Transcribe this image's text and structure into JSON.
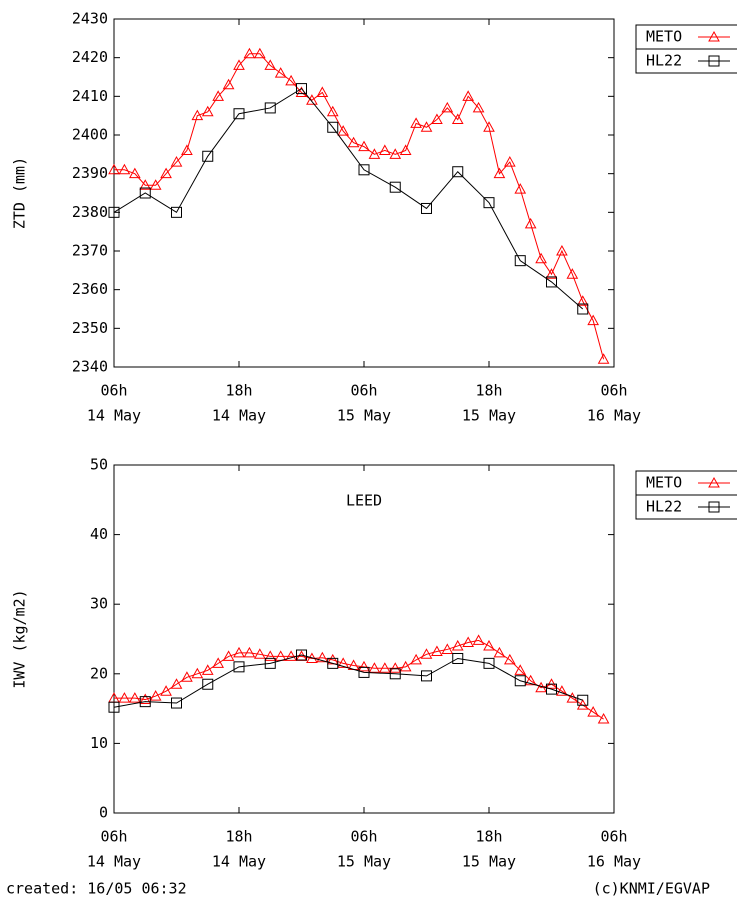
{
  "chart_data": [
    {
      "type": "line",
      "ylabel": "ZTD (mm)",
      "xlim": [
        0,
        48
      ],
      "xticks": [
        {
          "value": 0,
          "label": "06h",
          "date": "14 May"
        },
        {
          "value": 12,
          "label": "18h",
          "date": "14 May"
        },
        {
          "value": 24,
          "label": "06h",
          "date": "15 May"
        },
        {
          "value": 36,
          "label": "18h",
          "date": "15 May"
        },
        {
          "value": 48,
          "label": "06h",
          "date": "16 May"
        }
      ],
      "ylim": [
        2340,
        2430
      ],
      "yticks": [
        2340,
        2350,
        2360,
        2370,
        2380,
        2390,
        2400,
        2410,
        2420,
        2430
      ],
      "grid": false,
      "legend": "outside-right-top",
      "series": [
        {
          "name": "METO",
          "color": "#ff0000",
          "marker": "triangle",
          "x": [
            0,
            1,
            2,
            3,
            4,
            5,
            6,
            7,
            8,
            9,
            10,
            11,
            12,
            13,
            14,
            15,
            16,
            17,
            18,
            19,
            20,
            21,
            22,
            23,
            24,
            25,
            26,
            27,
            28,
            29,
            30,
            31,
            32,
            33,
            34,
            35,
            36,
            37,
            38,
            39,
            40,
            41,
            42,
            43,
            44,
            45,
            46,
            47
          ],
          "values": [
            2391,
            2391,
            2390,
            2387,
            2387,
            2390,
            2393,
            2396,
            2405,
            2406,
            2410,
            2413,
            2418,
            2421,
            2421,
            2418,
            2416,
            2414,
            2411,
            2409,
            2411,
            2406,
            2401,
            2398,
            2397,
            2395,
            2396,
            2395,
            2396,
            2403,
            2402,
            2404,
            2407,
            2404,
            2410,
            2407,
            2402,
            2390,
            2393,
            2386,
            2377,
            2368,
            2364,
            2370,
            2364,
            2357,
            2352,
            2342
          ]
        },
        {
          "name": "HL22",
          "color": "#000000",
          "marker": "square",
          "x": [
            0,
            3,
            6,
            9,
            12,
            15,
            18,
            21,
            24,
            27,
            30,
            33,
            36,
            39,
            42,
            45
          ],
          "values": [
            2380,
            2385,
            2380,
            2394.5,
            2405.5,
            2407,
            2412,
            2402,
            2391,
            2386.5,
            2381,
            2390.5,
            2382.5,
            2367.5,
            2362,
            2355
          ]
        }
      ]
    },
    {
      "type": "line",
      "ylabel": "IWV (kg/m2)",
      "annotation": "LEED",
      "xlim": [
        0,
        48
      ],
      "xticks": [
        {
          "value": 0,
          "label": "06h",
          "date": "14 May"
        },
        {
          "value": 12,
          "label": "18h",
          "date": "14 May"
        },
        {
          "value": 24,
          "label": "06h",
          "date": "15 May"
        },
        {
          "value": 36,
          "label": "18h",
          "date": "15 May"
        },
        {
          "value": 48,
          "label": "06h",
          "date": "16 May"
        }
      ],
      "ylim": [
        0,
        50
      ],
      "yticks": [
        0,
        10,
        20,
        30,
        40,
        50
      ],
      "grid": false,
      "legend": "outside-right-top",
      "series": [
        {
          "name": "METO",
          "color": "#ff0000",
          "marker": "triangle",
          "x": [
            0,
            1,
            2,
            3,
            4,
            5,
            6,
            7,
            8,
            9,
            10,
            11,
            12,
            13,
            14,
            15,
            16,
            17,
            18,
            19,
            20,
            21,
            22,
            23,
            24,
            25,
            26,
            27,
            28,
            29,
            30,
            31,
            32,
            33,
            34,
            35,
            36,
            37,
            38,
            39,
            40,
            41,
            42,
            43,
            44,
            45,
            46,
            47
          ],
          "values": [
            16.5,
            16.5,
            16.5,
            16.3,
            16.8,
            17.5,
            18.5,
            19.5,
            20,
            20.5,
            21.5,
            22.5,
            23,
            23,
            22.8,
            22.5,
            22.5,
            22.5,
            22.5,
            22.2,
            22.3,
            22,
            21.5,
            21.2,
            21,
            20.8,
            20.8,
            20.8,
            21,
            22,
            22.8,
            23.2,
            23.5,
            24,
            24.5,
            24.8,
            24,
            23,
            22,
            20.5,
            19,
            18,
            18.5,
            17.5,
            16.5,
            15.5,
            14.5,
            13.5
          ]
        },
        {
          "name": "HL22",
          "color": "#000000",
          "marker": "square",
          "x": [
            0,
            3,
            6,
            9,
            12,
            15,
            18,
            21,
            24,
            27,
            30,
            33,
            36,
            39,
            42,
            45
          ],
          "values": [
            15.2,
            16,
            15.8,
            18.5,
            21,
            21.5,
            22.7,
            21.5,
            20.2,
            20,
            19.7,
            22.2,
            21.5,
            19,
            17.8,
            16.2
          ]
        }
      ]
    }
  ],
  "footer": {
    "created": "created: 16/05 06:32",
    "credit": "(c)KNMI/EGVAP"
  }
}
